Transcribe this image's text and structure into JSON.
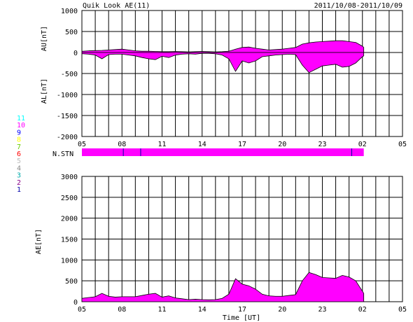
{
  "chart_data": [
    {
      "type": "area",
      "panel": "AU/AL",
      "title": "Quik Look AE(11)",
      "date_range": "2011/10/08-2011/10/09",
      "ylabel_upper": "AU[nT]",
      "ylabel_lower": "AL[nT]",
      "xlabel": "",
      "ylim": [
        -2000,
        1000
      ],
      "yticks": [
        1000,
        500,
        0,
        -500,
        -1000,
        -1500,
        -2000
      ],
      "xlim": [
        5,
        29
      ],
      "xticks": [
        "05",
        "08",
        "11",
        "14",
        "17",
        "20",
        "23",
        "02",
        "05"
      ],
      "grid": true,
      "fill_color": "#ff00ff",
      "series": [
        {
          "role": "AU",
          "x": [
            5.0,
            5.5,
            6.0,
            6.5,
            7.0,
            7.5,
            8.0,
            8.5,
            9.0,
            9.5,
            10.0,
            10.5,
            11.0,
            11.5,
            12.0,
            12.5,
            13.0,
            13.5,
            14.0,
            14.5,
            15.0,
            15.5,
            16.0,
            16.5,
            17.0,
            17.5,
            18.0,
            18.5,
            19.0,
            19.5,
            20.0,
            20.5,
            21.0,
            21.5,
            22.0,
            22.5,
            23.0,
            23.5,
            24.0,
            24.5,
            25.0,
            25.5,
            26.0,
            26.1
          ],
          "values": [
            30,
            40,
            45,
            50,
            60,
            70,
            80,
            60,
            40,
            30,
            30,
            25,
            20,
            20,
            25,
            20,
            15,
            20,
            25,
            20,
            15,
            20,
            30,
            80,
            120,
            130,
            100,
            80,
            60,
            70,
            80,
            100,
            120,
            200,
            230,
            250,
            260,
            270,
            280,
            280,
            260,
            240,
            150,
            120
          ]
        },
        {
          "role": "AL",
          "x": [
            5.0,
            5.5,
            6.0,
            6.5,
            7.0,
            7.5,
            8.0,
            8.5,
            9.0,
            9.5,
            10.0,
            10.5,
            11.0,
            11.5,
            12.0,
            12.5,
            13.0,
            13.5,
            14.0,
            14.5,
            15.0,
            15.5,
            16.0,
            16.5,
            17.0,
            17.5,
            18.0,
            18.5,
            19.0,
            19.5,
            20.0,
            20.5,
            21.0,
            21.5,
            22.0,
            22.5,
            23.0,
            23.5,
            24.0,
            24.5,
            25.0,
            25.5,
            26.0,
            26.1
          ],
          "values": [
            -30,
            -40,
            -60,
            -150,
            -50,
            -40,
            -40,
            -60,
            -80,
            -120,
            -150,
            -170,
            -90,
            -120,
            -60,
            -40,
            -30,
            -40,
            -20,
            -20,
            -30,
            -60,
            -150,
            -450,
            -200,
            -250,
            -200,
            -100,
            -80,
            -60,
            -50,
            -40,
            -50,
            -300,
            -480,
            -400,
            -320,
            -300,
            -280,
            -350,
            -330,
            -250,
            -100,
            -80
          ]
        }
      ]
    },
    {
      "type": "bar",
      "panel": "N.STN",
      "label": "N.STN",
      "xlim": [
        5,
        29
      ],
      "segments": [
        {
          "start": 5.0,
          "end": 26.1,
          "stations": 10
        }
      ],
      "markers": [
        8.1,
        9.4,
        25.2
      ],
      "legend": [
        "11",
        "10",
        "9",
        "8",
        "7",
        "6",
        "5",
        "4",
        "3",
        "2",
        "1"
      ],
      "legend_colors": [
        "#00ffff",
        "#ff00ff",
        "#0000ff",
        "#ffff00",
        "#66cc00",
        "#ff0000",
        "#bbbbbb",
        "#888888",
        "#00aaaa",
        "#880088",
        "#0000aa"
      ]
    },
    {
      "type": "area",
      "panel": "AE",
      "title": "",
      "xlabel": "Time [UT]",
      "ylabel": "AE[nT]",
      "ylim": [
        0,
        3000
      ],
      "yticks": [
        3000,
        2500,
        2000,
        1500,
        1000,
        500,
        0
      ],
      "xlim": [
        5,
        29
      ],
      "xticks": [
        "05",
        "08",
        "11",
        "14",
        "17",
        "20",
        "23",
        "02",
        "05"
      ],
      "grid": true,
      "fill_color": "#ff00ff",
      "x": [
        5.0,
        5.5,
        6.0,
        6.5,
        7.0,
        7.5,
        8.0,
        8.5,
        9.0,
        9.5,
        10.0,
        10.5,
        11.0,
        11.5,
        12.0,
        12.5,
        13.0,
        13.5,
        14.0,
        14.5,
        15.0,
        15.5,
        16.0,
        16.5,
        17.0,
        17.5,
        18.0,
        18.5,
        19.0,
        19.5,
        20.0,
        20.5,
        21.0,
        21.5,
        22.0,
        22.5,
        23.0,
        23.5,
        24.0,
        24.5,
        25.0,
        25.5,
        26.0,
        26.1
      ],
      "values": [
        80,
        100,
        120,
        200,
        130,
        110,
        120,
        120,
        120,
        150,
        180,
        200,
        110,
        140,
        90,
        70,
        50,
        60,
        50,
        45,
        50,
        80,
        180,
        550,
        420,
        380,
        300,
        180,
        140,
        130,
        130,
        150,
        170,
        500,
        700,
        650,
        580,
        570,
        560,
        630,
        590,
        500,
        250,
        200
      ]
    }
  ]
}
